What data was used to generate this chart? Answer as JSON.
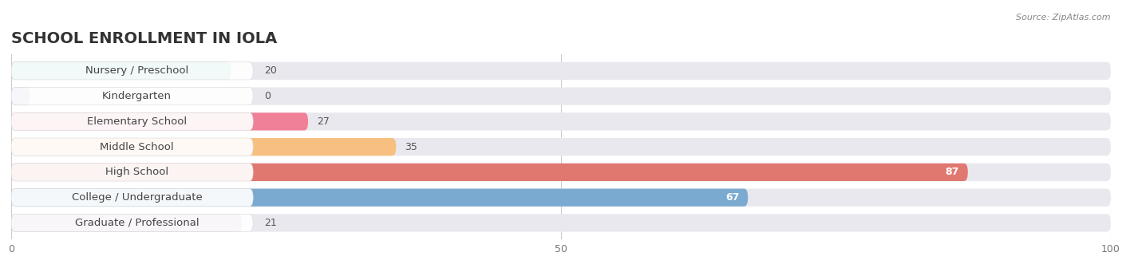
{
  "title": "SCHOOL ENROLLMENT IN IOLA",
  "source": "Source: ZipAtlas.com",
  "categories": [
    "Nursery / Preschool",
    "Kindergarten",
    "Elementary School",
    "Middle School",
    "High School",
    "College / Undergraduate",
    "Graduate / Professional"
  ],
  "values": [
    20,
    0,
    27,
    35,
    87,
    67,
    21
  ],
  "bar_colors": [
    "#5bbcb8",
    "#a8a8d8",
    "#f08098",
    "#f8c080",
    "#e07870",
    "#7aaad0",
    "#c098c8"
  ],
  "bar_bg_color": "#e8e8ee",
  "bg_color": "#ffffff",
  "xlim": [
    0,
    100
  ],
  "xticks": [
    0,
    50,
    100
  ],
  "title_fontsize": 14,
  "label_fontsize": 9.5,
  "value_fontsize": 9,
  "figsize": [
    14.06,
    3.41
  ],
  "dpi": 100
}
